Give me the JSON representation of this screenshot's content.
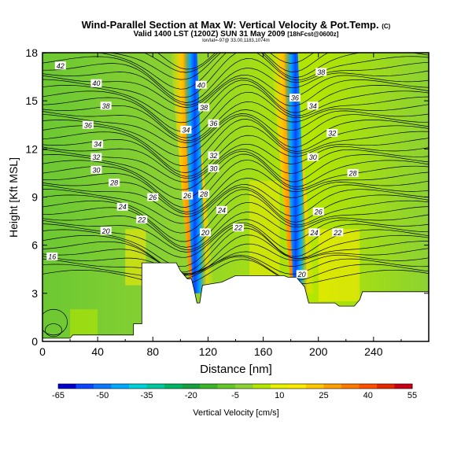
{
  "header": {
    "title": "Wind-Parallel Section at Max W: Vertical Velocity & Pot.Temp.",
    "copyright": "(C)",
    "valid_line": "Valid 1400 LST (1200Z) SUN 31 May 2009",
    "forecast_tag": "[18hFcst@0600z]",
    "location_line": "lon/lat=-97@ 33.00,1183,1074m"
  },
  "chart_data": {
    "type": "heatmap",
    "title": "Wind-Parallel Section at Max W: Vertical Velocity & Pot.Temp.",
    "xlabel": "Distance [nm]",
    "ylabel": "Height [Kft MSL]",
    "xlim": [
      0,
      280
    ],
    "ylim": [
      0,
      18
    ],
    "x_ticks": [
      "0",
      "40",
      "80",
      "120",
      "160",
      "200",
      "240"
    ],
    "y_ticks": [
      "0",
      "3",
      "6",
      "9",
      "12",
      "15",
      "18"
    ],
    "x_tick_values": [
      0,
      40,
      80,
      120,
      160,
      200,
      240
    ],
    "y_tick_values": [
      0,
      3,
      6,
      9,
      12,
      15,
      18
    ],
    "grid": false,
    "contour_variable": "Potential Temperature",
    "contour_labels": [
      {
        "text": "42",
        "x": 13,
        "y": 17.2
      },
      {
        "text": "40",
        "x": 39,
        "y": 16.1
      },
      {
        "text": "38",
        "x": 46,
        "y": 14.7
      },
      {
        "text": "36",
        "x": 33,
        "y": 13.5
      },
      {
        "text": "34",
        "x": 40,
        "y": 12.3
      },
      {
        "text": "32",
        "x": 39,
        "y": 11.5
      },
      {
        "text": "30",
        "x": 39,
        "y": 10.7
      },
      {
        "text": "28",
        "x": 52,
        "y": 9.9
      },
      {
        "text": "26",
        "x": 80,
        "y": 9.0
      },
      {
        "text": "24",
        "x": 58,
        "y": 8.4
      },
      {
        "text": "22",
        "x": 72,
        "y": 7.6
      },
      {
        "text": "20",
        "x": 46,
        "y": 6.9
      },
      {
        "text": "16",
        "x": 7,
        "y": 5.3
      },
      {
        "text": "40",
        "x": 115,
        "y": 16.0
      },
      {
        "text": "38",
        "x": 117,
        "y": 14.6
      },
      {
        "text": "36",
        "x": 124,
        "y": 13.6
      },
      {
        "text": "34",
        "x": 104,
        "y": 13.2
      },
      {
        "text": "32",
        "x": 124,
        "y": 11.6
      },
      {
        "text": "30",
        "x": 124,
        "y": 10.8
      },
      {
        "text": "28",
        "x": 117,
        "y": 9.2
      },
      {
        "text": "26",
        "x": 105,
        "y": 9.1
      },
      {
        "text": "24",
        "x": 130,
        "y": 8.2
      },
      {
        "text": "22",
        "x": 142,
        "y": 7.1
      },
      {
        "text": "20",
        "x": 118,
        "y": 6.8
      },
      {
        "text": "38",
        "x": 202,
        "y": 16.8
      },
      {
        "text": "36",
        "x": 183,
        "y": 15.2
      },
      {
        "text": "34",
        "x": 196,
        "y": 14.7
      },
      {
        "text": "32",
        "x": 210,
        "y": 13.0
      },
      {
        "text": "30",
        "x": 196,
        "y": 11.5
      },
      {
        "text": "28",
        "x": 225,
        "y": 10.5
      },
      {
        "text": "26",
        "x": 200,
        "y": 8.1
      },
      {
        "text": "24",
        "x": 197,
        "y": 6.8
      },
      {
        "text": "22",
        "x": 214,
        "y": 6.8
      },
      {
        "text": "20",
        "x": 188,
        "y": 4.2
      }
    ],
    "updrafts": [
      {
        "x": 113,
        "w_min": -65,
        "w_max": 40
      },
      {
        "x": 186,
        "w_min": -50,
        "w_max": 50
      }
    ],
    "terrain_kft": [
      {
        "x": 0,
        "h": 0.2
      },
      {
        "x": 20,
        "h": 0.2
      },
      {
        "x": 22,
        "h": 0.4
      },
      {
        "x": 66,
        "h": 0.4
      },
      {
        "x": 66,
        "h": 1.1
      },
      {
        "x": 72,
        "h": 1.1
      },
      {
        "x": 72,
        "h": 4.9
      },
      {
        "x": 97,
        "h": 4.9
      },
      {
        "x": 100,
        "h": 4.4
      },
      {
        "x": 105,
        "h": 3.9
      },
      {
        "x": 108,
        "h": 3.9
      },
      {
        "x": 110,
        "h": 3.2
      },
      {
        "x": 112,
        "h": 2.4
      },
      {
        "x": 114,
        "h": 2.4
      },
      {
        "x": 116,
        "h": 3.5
      },
      {
        "x": 130,
        "h": 3.7
      },
      {
        "x": 140,
        "h": 4.1
      },
      {
        "x": 175,
        "h": 4.1
      },
      {
        "x": 178,
        "h": 4.0
      },
      {
        "x": 184,
        "h": 4.0
      },
      {
        "x": 190,
        "h": 3.4
      },
      {
        "x": 193,
        "h": 2.4
      },
      {
        "x": 212,
        "h": 2.4
      },
      {
        "x": 215,
        "h": 2.2
      },
      {
        "x": 226,
        "h": 2.2
      },
      {
        "x": 230,
        "h": 2.6
      },
      {
        "x": 232,
        "h": 3.1
      },
      {
        "x": 238,
        "h": 3.1
      },
      {
        "x": 280,
        "h": 3.1
      }
    ],
    "colorbar": {
      "label": "Vertical Velocity [cm/s]",
      "ticks": [
        "-65",
        "-50",
        "-35",
        "-20",
        "-5",
        "10",
        "25",
        "40",
        "55"
      ],
      "colors": [
        "#0000c8",
        "#0a46ff",
        "#0a78ff",
        "#00aaff",
        "#00d2dc",
        "#00c8a0",
        "#00b464",
        "#14a03c",
        "#3cb428",
        "#64c828",
        "#8cd232",
        "#b4e600",
        "#e6f000",
        "#ffeb00",
        "#ffc800",
        "#ffa000",
        "#ff7800",
        "#ff5000",
        "#e62800",
        "#c80014"
      ]
    }
  }
}
